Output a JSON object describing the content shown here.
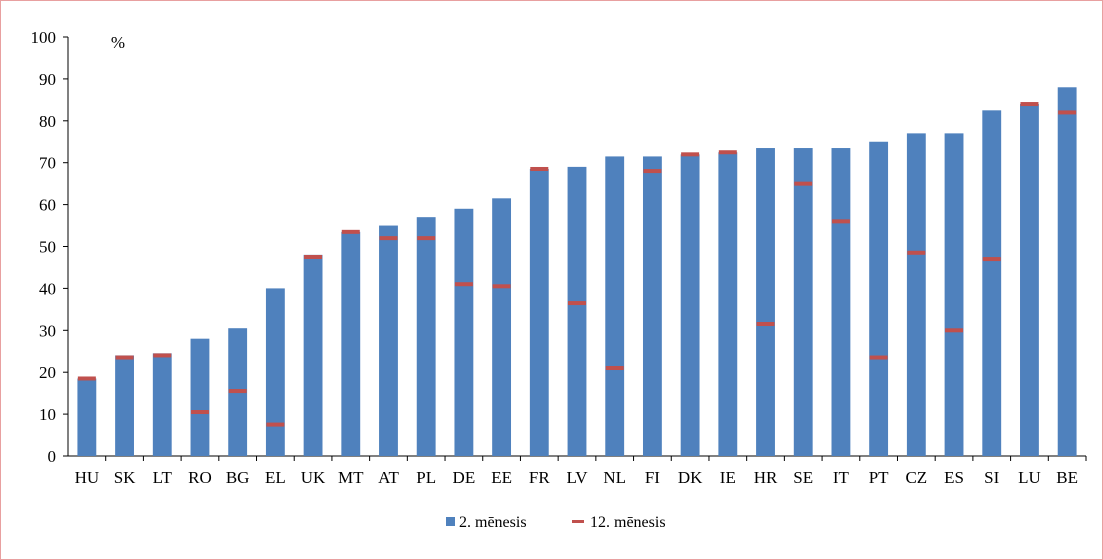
{
  "chart_data": {
    "type": "bar",
    "unit_label": "%",
    "ylim": [
      0,
      100
    ],
    "yticks": [
      0,
      10,
      20,
      30,
      40,
      50,
      60,
      70,
      80,
      90,
      100
    ],
    "categories": [
      "HU",
      "SK",
      "LT",
      "RO",
      "BG",
      "EL",
      "UK",
      "MT",
      "AT",
      "PL",
      "DE",
      "EE",
      "FR",
      "LV",
      "NL",
      "FI",
      "DK",
      "IE",
      "HR",
      "SE",
      "IT",
      "PT",
      "CZ",
      "ES",
      "SI",
      "LU",
      "BE"
    ],
    "series": [
      {
        "name": "2. mēnesis",
        "kind": "bar",
        "color": "#4f81bd",
        "values": [
          18.5,
          24,
          24.5,
          28,
          30.5,
          40,
          48,
          53.5,
          55,
          57,
          59,
          61.5,
          68.5,
          69,
          71.5,
          71.5,
          72,
          72.5,
          73.5,
          73.5,
          73.5,
          75,
          77,
          77,
          82.5,
          84,
          88
        ]
      },
      {
        "name": "12. mēnesis",
        "kind": "marker",
        "color": "#c0504d",
        "values": [
          18.5,
          23.5,
          24,
          10.5,
          15.5,
          7.5,
          47.5,
          53.5,
          52,
          52,
          41,
          40.5,
          68.5,
          36.5,
          21,
          68,
          72,
          72.5,
          31.5,
          65,
          56,
          23.5,
          48.5,
          30,
          47,
          84,
          82
        ]
      }
    ],
    "legend": {
      "position": "bottom"
    },
    "grid": false
  }
}
